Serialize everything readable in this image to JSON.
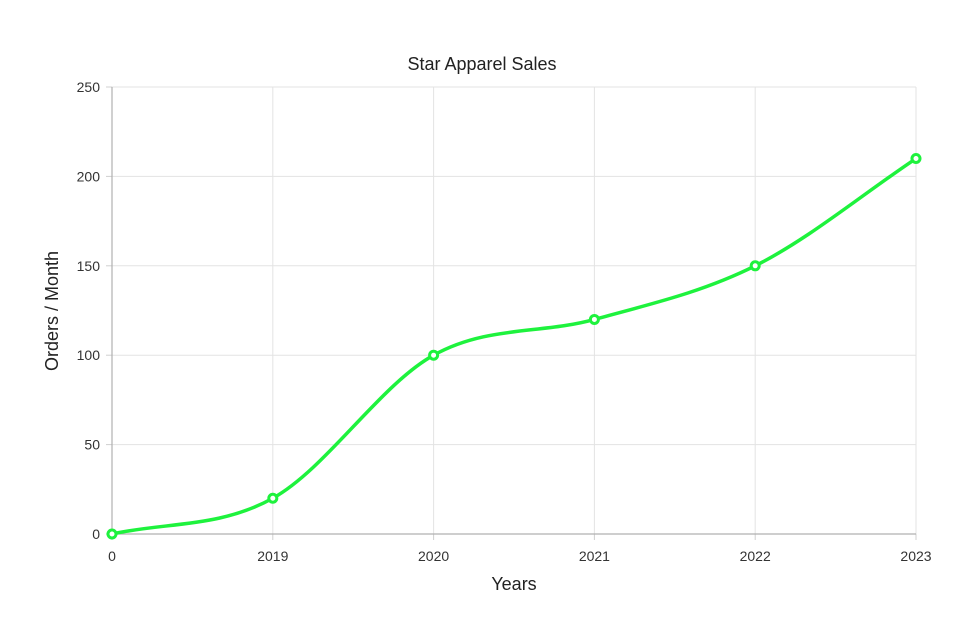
{
  "chart_data": {
    "type": "line",
    "title": "Star Apparel Sales",
    "xlabel": "Years",
    "ylabel": "Orders / Month",
    "categories": [
      "0",
      "2019",
      "2020",
      "2021",
      "2022",
      "2023"
    ],
    "series": [
      {
        "values": [
          0,
          20,
          100,
          120,
          150,
          210
        ],
        "color": "#1ef23d"
      }
    ],
    "ylim": [
      0,
      250
    ],
    "yticks": [
      0,
      50,
      100,
      150,
      200,
      250
    ],
    "grid": true,
    "smooth": true,
    "legend": "none"
  }
}
